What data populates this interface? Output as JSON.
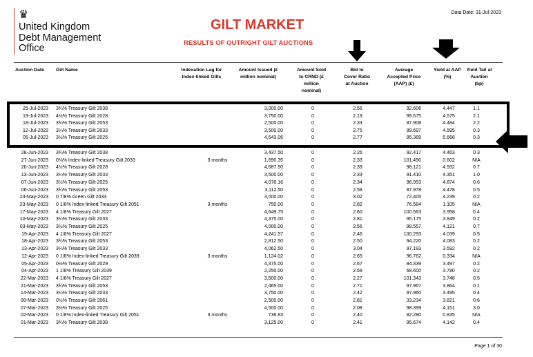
{
  "header": {
    "org_name": [
      "United Kingdom",
      "Debt Management",
      "Office"
    ],
    "data_date": "Data Date: 31-Jul-2023",
    "title": "GILT MARKET",
    "subtitle": "RESULTS OF OUTRIGHT GILT AUCTIONS"
  },
  "table": {
    "columns": [
      "Auction Date",
      "Gilt Name",
      "Indexation Lag for Index-linked Gilts",
      "Amount Issued (£ million nominal)",
      "Amount Sold to CRND (£ million nominal)",
      "Bid to Cover Ratio at Auction",
      "Average Accepted Price (AAP) (£)",
      "Yield at AAP (%)",
      "Yield Tail at Auction (bp)"
    ],
    "rows": [
      [
        "25-Jul-2023",
        "3¾% Treasury Gilt 2038",
        "",
        "3,000.00",
        "0",
        "2.56",
        "92.606",
        "4.447",
        "1.1"
      ],
      [
        "19-Jul-2023",
        "4½% Treasury Gilt 2028",
        "",
        "3,750.00",
        "0",
        "2.19",
        "99.675",
        "4.575",
        "2.1"
      ],
      [
        "18-Jul-2023",
        "3¾% Treasury Gilt 2053",
        "",
        "2,500.00",
        "0",
        "2.33",
        "87.908",
        "4.484",
        "2.2"
      ],
      [
        "12-Jul-2023",
        "3¼% Treasury Gilt 2033",
        "",
        "3,500.00",
        "0",
        "2.75",
        "89.697",
        "4.595",
        "0.3"
      ],
      [
        "05-Jul-2023",
        "3½% Treasury Gilt 2025",
        "",
        "4,643.06",
        "0",
        "2.77",
        "95.389",
        "5.668",
        "0.3"
      ],
      [
        "28-Jun-2023",
        "3¾% Treasury Gilt 2038",
        "",
        "3,437.50",
        "0",
        "2.26",
        "92.417",
        "4.463",
        "0.3"
      ],
      [
        "27-Jun-2023",
        "0⅛% Index-linked Treasury Gilt 2033",
        "3 months",
        "1,690.35",
        "0",
        "2.33",
        "101.490",
        "0.602",
        "N/A"
      ],
      [
        "20-Jun-2023",
        "4½% Treasury Gilt 2028",
        "",
        "4,687.50",
        "0",
        "2.39",
        "98.121",
        "4.932",
        "0.7"
      ],
      [
        "13-Jun-2023",
        "3¼% Treasury Gilt 2033",
        "",
        "3,500.00",
        "0",
        "2.33",
        "91.410",
        "4.351",
        "1.0"
      ],
      [
        "07-Jun-2023",
        "3½% Treasury Gilt 2025",
        "",
        "4,076.16",
        "0",
        "2.34",
        "96.953",
        "4.874",
        "0.6"
      ],
      [
        "06-Jun-2023",
        "3¾% Treasury Gilt 2053",
        "",
        "3,112.50",
        "0",
        "2.58",
        "87.978",
        "4.478",
        "0.5"
      ],
      [
        "24-May-2023",
        "0 7/8% Green Gilt 2033",
        "",
        "3,000.00",
        "0",
        "3.02",
        "72.405",
        "4.239",
        "0.2"
      ],
      [
        "23-May-2023",
        "0 1/8% Index-linked Treasury Gilt 2051",
        "3 months",
        "750.00",
        "0",
        "2.82",
        "76.584",
        "1.105",
        "N/A"
      ],
      [
        "17-May-2023",
        "4 1/8% Treasury Gilt 2027",
        "",
        "4,649.75",
        "0",
        "2.60",
        "100.563",
        "3.958",
        "0.4"
      ],
      [
        "10-May-2023",
        "3¼% Treasury Gilt 2033",
        "",
        "4,375.00",
        "0",
        "2.81",
        "95.175",
        "3.849",
        "0.2"
      ],
      [
        "03-May-2023",
        "3½% Treasury Gilt 2025",
        "",
        "4,000.00",
        "0",
        "2.56",
        "98.557",
        "4.121",
        "0.7"
      ],
      [
        "19-Apr-2023",
        "4 1/8% Treasury Gilt 2027",
        "",
        "4,241.57",
        "0",
        "2.46",
        "100.293",
        "4.039",
        "0.5"
      ],
      [
        "18-Apr-2023",
        "3¾% Treasury Gilt 2053",
        "",
        "2,812.50",
        "0",
        "2.50",
        "94.220",
        "4.083",
        "0.2"
      ],
      [
        "13-Apr-2023",
        "3¼% Treasury Gilt 2033",
        "",
        "4,062.50",
        "0",
        "3.04",
        "97.193",
        "3.592",
        "0.2"
      ],
      [
        "12-Apr-2023",
        "0 1/8% Index-linked Treasury Gilt 2039",
        "3 months",
        "1,124.02",
        "0",
        "2.65",
        "96.762",
        "0.334",
        "N/A"
      ],
      [
        "05-Apr-2023",
        "0½% Treasury Gilt 2029",
        "",
        "4,375.00",
        "0",
        "2.67",
        "84.339",
        "3.497",
        "0.2"
      ],
      [
        "04-Apr-2023",
        "1 1/8% Treasury Gilt 2039",
        "",
        "2,250.00",
        "0",
        "2.58",
        "68.600",
        "3.780",
        "0.2"
      ],
      [
        "22-Mar-2023",
        "4 1/8% Treasury Gilt 2027",
        "",
        "3,500.00",
        "0",
        "2.27",
        "101.343",
        "3.748",
        "0.5"
      ],
      [
        "21-Mar-2023",
        "3¾% Treasury Gilt 2053",
        "",
        "2,465.00",
        "0",
        "2.71",
        "97.967",
        "3.864",
        "0.1"
      ],
      [
        "14-Mar-2023",
        "3¼% Treasury Gilt 2033",
        "",
        "3,750.00",
        "0",
        "2.42",
        "97.960",
        "3.495",
        "0.4"
      ],
      [
        "08-Mar-2023",
        "0½% Treasury Gilt 2061",
        "",
        "2,500.00",
        "0",
        "2.81",
        "33.234",
        "3.821",
        "0.6"
      ],
      [
        "07-Mar-2023",
        "3½% Treasury Gilt 2025",
        "",
        "4,500.00",
        "0",
        "2.08",
        "98.399",
        "4.151",
        "3.0"
      ],
      [
        "02-Mar-2023",
        "0 1/8% Index-linked Treasury Gilt 2051",
        "3 months",
        "736.83",
        "0",
        "2.40",
        "82.280",
        "0.835",
        "N/A"
      ],
      [
        "01-Mar-2023",
        "3¾% Treasury Gilt 2038",
        "",
        "3,125.00",
        "0",
        "2.41",
        "95.674",
        "4.142",
        "0.4"
      ]
    ]
  },
  "footer": {
    "page": "Page 1 of 30"
  },
  "annotations": {
    "color": "#000000",
    "icons": [
      "arrow-down-icon",
      "arrow-down-icon",
      "arrow-left-icon"
    ]
  },
  "colors": {
    "title": "#d9382b",
    "logo_rule": "#c0392b"
  }
}
